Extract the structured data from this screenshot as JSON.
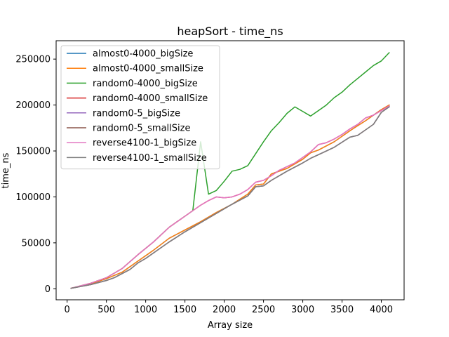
{
  "chart_data": {
    "type": "line",
    "title": "heapSort - time_ns",
    "xlabel": "Array size",
    "ylabel": "time_ns",
    "xlim": [
      -140,
      4290
    ],
    "ylim": [
      -12000,
      270000
    ],
    "xticks": [
      0,
      500,
      1000,
      1500,
      2000,
      2500,
      3000,
      3500,
      4000
    ],
    "yticks": [
      0,
      50000,
      100000,
      150000,
      200000,
      250000
    ],
    "grid": false,
    "legend_position": "top-left",
    "series": [
      {
        "name": "almost0-4000_bigSize",
        "color": "#1f77b4",
        "x": [
          50,
          300,
          500,
          700,
          900,
          1100,
          1300,
          1500,
          1700,
          1900,
          2100,
          2300,
          2400,
          2500,
          2600,
          2800,
          3000,
          3100,
          3200,
          3400,
          3600,
          3800,
          4000,
          4100
        ],
        "y": [
          500,
          5500,
          11000,
          18000,
          30000,
          42000,
          55000,
          64000,
          73000,
          83000,
          92000,
          103000,
          113000,
          114000,
          125000,
          131000,
          141000,
          148000,
          151000,
          160000,
          172000,
          183000,
          195000,
          200000
        ]
      },
      {
        "name": "almost0-4000_smallSize",
        "color": "#ff7f0e",
        "x": [
          50,
          300,
          500,
          700,
          900,
          1100,
          1300,
          1500,
          1700,
          1900,
          2100,
          2300,
          2400,
          2500,
          2600,
          2800,
          3000,
          3100,
          3200,
          3400,
          3600,
          3800,
          4000,
          4100
        ],
        "y": [
          500,
          5500,
          11000,
          18000,
          30000,
          42000,
          55000,
          64000,
          73000,
          83000,
          92000,
          103000,
          113000,
          114000,
          125000,
          131000,
          141000,
          148000,
          151000,
          160000,
          172000,
          183000,
          195000,
          200000
        ]
      },
      {
        "name": "random0-4000_bigSize",
        "color": "#2ca02c",
        "x": [
          50,
          300,
          500,
          700,
          900,
          1100,
          1300,
          1500,
          1600,
          1700,
          1800,
          1900,
          2000,
          2100,
          2200,
          2300,
          2400,
          2500,
          2600,
          2700,
          2800,
          2900,
          3000,
          3100,
          3200,
          3300,
          3400,
          3500,
          3600,
          3700,
          3800,
          3900,
          4000,
          4100
        ],
        "y": [
          500,
          6000,
          12000,
          22000,
          37000,
          51000,
          67000,
          79000,
          85000,
          160000,
          103000,
          107000,
          117000,
          128000,
          130000,
          134000,
          147000,
          160000,
          172000,
          181000,
          191000,
          198000,
          193000,
          188000,
          194000,
          200000,
          208000,
          214000,
          222000,
          229000,
          236000,
          243000,
          248000,
          257000
        ]
      },
      {
        "name": "random0-4000_smallSize",
        "color": "#d62728",
        "x": [
          50,
          300,
          500,
          700,
          900,
          1100,
          1300,
          1500,
          1600,
          1700,
          1800,
          1900,
          2000,
          2100,
          2200,
          2300,
          2400,
          2500,
          2600,
          2700,
          2800,
          2900,
          3000,
          3100,
          3200,
          3300,
          3400,
          3500,
          3600,
          3700,
          3800,
          3900,
          4000,
          4100
        ],
        "y": [
          500,
          6000,
          12000,
          22000,
          37000,
          51000,
          67000,
          79000,
          85000,
          91000,
          96000,
          100000,
          99000,
          100000,
          103000,
          108000,
          116000,
          118000,
          123000,
          129000,
          133000,
          137000,
          143000,
          149000,
          157000,
          159000,
          163000,
          168000,
          174000,
          179000,
          186000,
          189000,
          194000,
          199000
        ]
      },
      {
        "name": "random0-5_bigSize",
        "color": "#9467bd",
        "x": [
          50,
          300,
          500,
          600,
          800,
          900,
          1000,
          1100,
          1300,
          1500,
          1700,
          1900,
          2100,
          2300,
          2400,
          2500,
          2600,
          2800,
          3000,
          3100,
          3200,
          3400,
          3600,
          3700,
          3800,
          3900,
          4000,
          4100
        ],
        "y": [
          500,
          4500,
          9000,
          12000,
          21000,
          28000,
          33000,
          39000,
          51000,
          62000,
          72000,
          82000,
          92000,
          101000,
          111000,
          112000,
          118000,
          128000,
          137000,
          142000,
          146000,
          154000,
          165000,
          167000,
          173000,
          179000,
          192000,
          198000
        ]
      },
      {
        "name": "random0-5_smallSize",
        "color": "#8c564b",
        "x": [
          50,
          300,
          500,
          600,
          800,
          900,
          1000,
          1100,
          1300,
          1500,
          1700,
          1900,
          2100,
          2300,
          2400,
          2500,
          2600,
          2800,
          3000,
          3100,
          3200,
          3400,
          3600,
          3700,
          3800,
          3900,
          4000,
          4100
        ],
        "y": [
          500,
          4500,
          9000,
          12000,
          21000,
          28000,
          33000,
          39000,
          51000,
          62000,
          72000,
          82000,
          92000,
          101000,
          111000,
          112000,
          118000,
          128000,
          137000,
          142000,
          146000,
          154000,
          165000,
          167000,
          173000,
          179000,
          192000,
          198000
        ]
      },
      {
        "name": "reverse4100-1_bigSize",
        "color": "#e377c2",
        "x": [
          50,
          300,
          500,
          700,
          900,
          1100,
          1300,
          1500,
          1600,
          1700,
          1800,
          1900,
          2000,
          2100,
          2200,
          2300,
          2400,
          2500,
          2600,
          2700,
          2800,
          2900,
          3000,
          3100,
          3200,
          3300,
          3400,
          3500,
          3600,
          3700,
          3800,
          3900,
          4000,
          4100
        ],
        "y": [
          500,
          6000,
          12000,
          22000,
          37000,
          51000,
          67000,
          79000,
          85000,
          91000,
          96000,
          100000,
          99000,
          100000,
          103000,
          108000,
          116000,
          118000,
          123000,
          129000,
          133000,
          137000,
          143000,
          149000,
          157000,
          159000,
          163000,
          168000,
          174000,
          179000,
          186000,
          189000,
          194000,
          199000
        ]
      },
      {
        "name": "reverse4100-1_smallSize",
        "color": "#7f7f7f",
        "x": [
          50,
          300,
          500,
          600,
          800,
          900,
          1000,
          1100,
          1300,
          1500,
          1700,
          1900,
          2100,
          2300,
          2400,
          2500,
          2600,
          2800,
          3000,
          3100,
          3200,
          3400,
          3600,
          3700,
          3800,
          3900,
          4000,
          4100
        ],
        "y": [
          500,
          4500,
          9000,
          12000,
          21000,
          28000,
          33000,
          39000,
          51000,
          62000,
          72000,
          82000,
          92000,
          101000,
          111000,
          112000,
          118000,
          128000,
          137000,
          142000,
          146000,
          154000,
          165000,
          167000,
          173000,
          179000,
          192000,
          198000
        ]
      }
    ]
  }
}
